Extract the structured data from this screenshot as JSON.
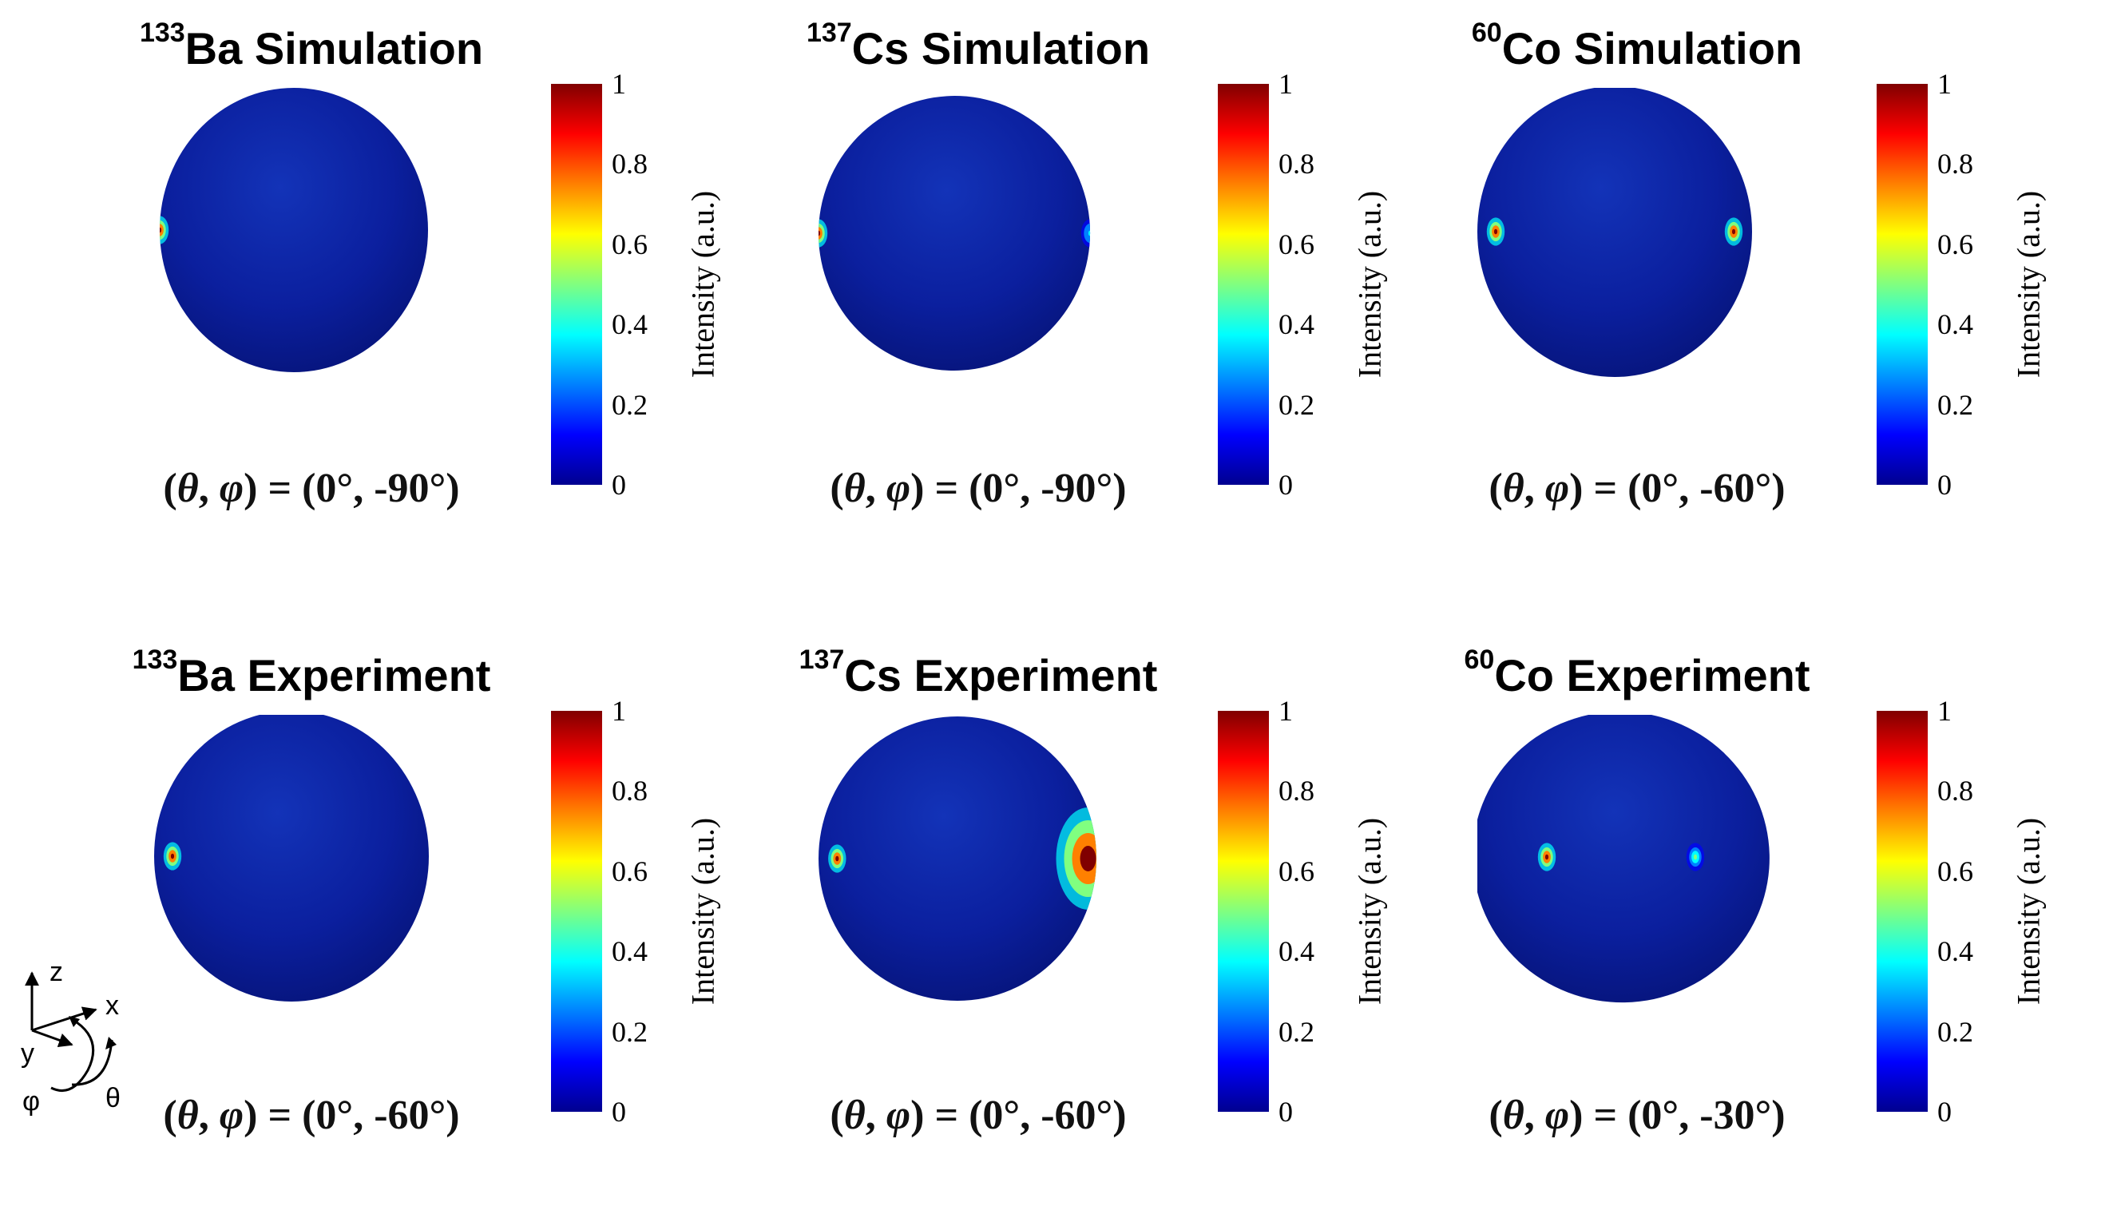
{
  "colors": {
    "sphere_base": "#0b1f9e",
    "colormap": [
      "#00008f",
      "#0000ff",
      "#0080ff",
      "#00ffff",
      "#80ff80",
      "#ffff00",
      "#ff8000",
      "#ff0000",
      "#800000"
    ]
  },
  "colorbar": {
    "label": "Intensity (a.u.)",
    "ticks": [
      "0",
      "0.2",
      "0.4",
      "0.6",
      "0.8",
      "1"
    ],
    "range": [
      0,
      1
    ]
  },
  "axes_key": {
    "z": "z",
    "x": "x",
    "y": "y",
    "phi": "φ",
    "theta": "θ"
  },
  "chart_data": [
    {
      "type": "heatmap",
      "isotope": "133",
      "element": "Ba",
      "kind": "Simulation",
      "title_suffix": "Ba Simulation",
      "angle_text": "(0°, -90°)",
      "hotspots": [
        {
          "theta_deg": 0,
          "phi_deg": -90,
          "intensity": 1.0
        }
      ]
    },
    {
      "type": "heatmap",
      "isotope": "137",
      "element": "Cs",
      "kind": "Simulation",
      "title_suffix": "Cs Simulation",
      "angle_text": "(0°, -90°)",
      "hotspots": [
        {
          "theta_deg": 0,
          "phi_deg": -90,
          "intensity": 1.0
        },
        {
          "theta_deg": 0,
          "phi_deg": 90,
          "intensity": 0.35
        }
      ]
    },
    {
      "type": "heatmap",
      "isotope": "60",
      "element": "Co",
      "kind": "Simulation",
      "title_suffix": "Co Simulation",
      "angle_text": "(0°, -60°)",
      "hotspots": [
        {
          "theta_deg": 0,
          "phi_deg": -60,
          "intensity": 1.0
        },
        {
          "theta_deg": 0,
          "phi_deg": 60,
          "intensity": 1.0
        }
      ]
    },
    {
      "type": "heatmap",
      "isotope": "133",
      "element": "Ba",
      "kind": "Experiment",
      "title_suffix": "Ba Experiment",
      "angle_text": "(0°, -60°)",
      "hotspots": [
        {
          "theta_deg": 0,
          "phi_deg": -60,
          "intensity": 1.0
        }
      ]
    },
    {
      "type": "heatmap",
      "isotope": "137",
      "element": "Cs",
      "kind": "Experiment",
      "title_suffix": "Cs Experiment",
      "angle_text": "(0°, -60°)",
      "hotspots": [
        {
          "theta_deg": 0,
          "phi_deg": -60,
          "intensity": 1.0
        },
        {
          "theta_deg": 0,
          "phi_deg": 70,
          "intensity": 1.0
        }
      ]
    },
    {
      "type": "heatmap",
      "isotope": "60",
      "element": "Co",
      "kind": "Experiment",
      "title_suffix": "Co Experiment",
      "angle_text": "(0°, -30°)",
      "hotspots": [
        {
          "theta_deg": 0,
          "phi_deg": -30,
          "intensity": 1.0
        },
        {
          "theta_deg": 0,
          "phi_deg": 30,
          "intensity": 0.5
        }
      ]
    }
  ]
}
